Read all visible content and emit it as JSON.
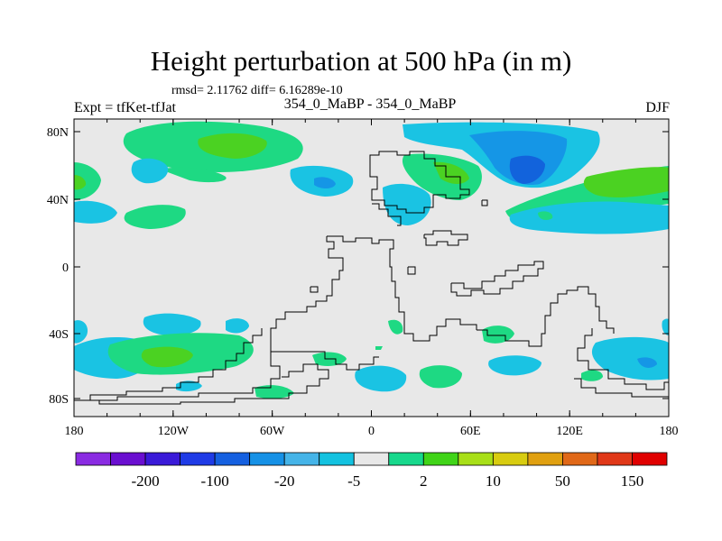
{
  "title": "Height perturbation at 500 hPa (in m)",
  "stats": "rmsd= 2.11762  diff= 6.16289e-10",
  "left_label": "Expt = tfKet-tfJat",
  "center_label": "354_0_MaBP - 354_0_MaBP",
  "right_label": "DJF",
  "lat_ticks": [
    "80N",
    "40N",
    "0",
    "40S",
    "80S"
  ],
  "lon_ticks": [
    "180",
    "120W",
    "60W",
    "0",
    "60E",
    "120E",
    "180"
  ],
  "colorbar": {
    "colors": [
      "#8a2be2",
      "#6a0fd0",
      "#3a1ad8",
      "#1f3be6",
      "#1560e0",
      "#1691e6",
      "#45b4e8",
      "#13c2e0",
      "#e8e8e8",
      "#17d88c",
      "#40d418",
      "#a8df18",
      "#d8cc10",
      "#e0a010",
      "#e06818",
      "#e03818",
      "#e00000"
    ],
    "labels": [
      "-200",
      "-100",
      "-20",
      "-5",
      "2",
      "10",
      "50",
      "150"
    ]
  },
  "map_colors": {
    "background": "#e8e8e8",
    "light_green": "#1ed983",
    "bright_green": "#4bd222",
    "light_blue": "#1ac3e3",
    "mid_blue": "#1596e6",
    "dark_blue": "#1263dc",
    "coast": "#000000"
  }
}
